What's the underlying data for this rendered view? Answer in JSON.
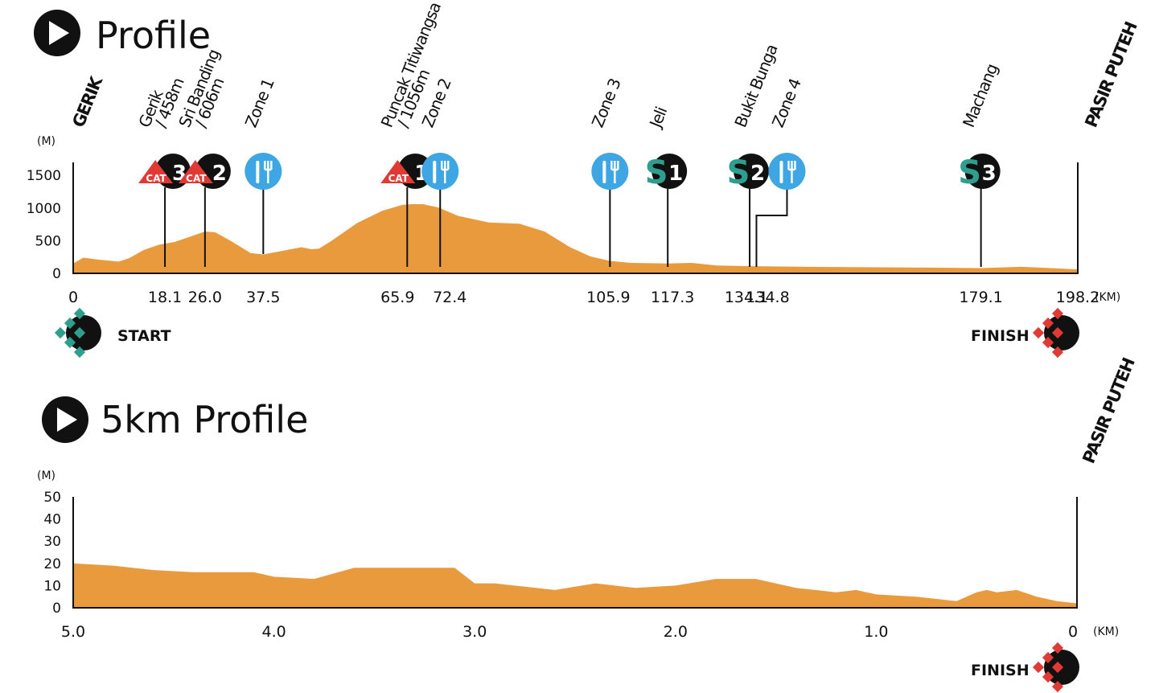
{
  "colors": {
    "fill": "#E99A3C",
    "climb": "#E03A34",
    "feed": "#3EA6E2",
    "sprint": "#2E9E8E",
    "dark": "#111111"
  },
  "profile": {
    "title": "Profile",
    "unit_y": "(M)",
    "unit_x": "(KM)",
    "start_label": "START",
    "finish_label": "FINISH",
    "start_place": "GERIK",
    "finish_place": "PASIR PUTEH",
    "x_ticks": [
      {
        "label": "0",
        "km": 0
      },
      {
        "label": "18.1",
        "km": 18.1
      },
      {
        "label": "26.0",
        "km": 26.0
      },
      {
        "label": "37.5",
        "km": 37.5
      },
      {
        "label": "65.9",
        "km": 65.9
      },
      {
        "label": "72.4",
        "km": 72.4
      },
      {
        "label": "105.9",
        "km": 105.9
      },
      {
        "label": "117.3",
        "km": 117.3
      },
      {
        "label": "134.1",
        "km": 134.1
      },
      {
        "label": "134.8",
        "km": 134.8
      },
      {
        "label": "179.1",
        "km": 179.1
      },
      {
        "label": "198.2",
        "km": 198.2
      }
    ],
    "locations": [
      {
        "km": 18.1,
        "lines": [
          "Gerik",
          "/ 458m"
        ]
      },
      {
        "km": 26.0,
        "lines": [
          "Sri Banding",
          "/ 606m"
        ]
      },
      {
        "km": 37.5,
        "lines": [
          "Zone 1"
        ]
      },
      {
        "km": 65.9,
        "lines": [
          "Puncak Titiwangsa",
          "/ 1056m"
        ]
      },
      {
        "km": 72.4,
        "lines": [
          "Zone 2"
        ]
      },
      {
        "km": 105.9,
        "lines": [
          "Zone 3"
        ]
      },
      {
        "km": 117.3,
        "lines": [
          "Jeli"
        ]
      },
      {
        "km": 134.1,
        "lines": [
          "Bukit Bunga"
        ]
      },
      {
        "km": 134.8,
        "lines": [
          "Zone 4"
        ]
      },
      {
        "km": 179.1,
        "lines": [
          "Machang"
        ]
      }
    ],
    "markers": [
      {
        "km": 18.1,
        "type": "climb",
        "tag": "CAT",
        "num": "3"
      },
      {
        "km": 26.0,
        "type": "climb",
        "tag": "CAT",
        "num": "2"
      },
      {
        "km": 37.5,
        "type": "feed"
      },
      {
        "km": 65.9,
        "type": "climb",
        "tag": "CAT",
        "num": "1"
      },
      {
        "km": 72.4,
        "type": "feed"
      },
      {
        "km": 105.9,
        "type": "feed"
      },
      {
        "km": 117.3,
        "type": "sprint",
        "tag": "S",
        "num": "1"
      },
      {
        "km": 134.1,
        "type": "sprint",
        "tag": "S",
        "num": "2"
      },
      {
        "km": 134.8,
        "type": "feed"
      },
      {
        "km": 179.1,
        "type": "sprint",
        "tag": "S",
        "num": "3"
      }
    ]
  },
  "profile5": {
    "title": "5km Profile",
    "unit_y": "(M)",
    "unit_x": "(KM)",
    "finish_label": "FINISH",
    "finish_place": "PASIR PUTEH",
    "x_ticks": [
      {
        "label": "5.0",
        "km": 5.0
      },
      {
        "label": "4.0",
        "km": 4.0
      },
      {
        "label": "3.0",
        "km": 3.0
      },
      {
        "label": "2.0",
        "km": 2.0
      },
      {
        "label": "1.0",
        "km": 1.0
      },
      {
        "label": "0",
        "km": 0
      }
    ]
  },
  "chart_data": [
    {
      "type": "area",
      "title": "Profile",
      "xlabel": "(KM)",
      "ylabel": "(M)",
      "xlim": [
        0,
        198.2
      ],
      "ylim": [
        0,
        1700
      ],
      "y_ticks": [
        0,
        500,
        1000,
        1500
      ],
      "x": [
        0,
        2,
        5,
        9,
        11,
        14,
        17,
        20,
        23,
        26,
        28,
        31,
        35,
        37.5,
        41,
        45,
        47,
        48.5,
        51,
        56,
        61,
        65,
        66.5,
        69,
        72,
        76,
        82,
        88,
        93,
        98,
        102,
        105.9,
        110,
        117.3,
        122,
        127,
        134,
        145,
        165,
        179.1,
        187,
        193,
        198.2
      ],
      "y": [
        150,
        240,
        210,
        180,
        230,
        360,
        440,
        480,
        560,
        640,
        630,
        500,
        310,
        290,
        340,
        400,
        370,
        380,
        500,
        770,
        960,
        1050,
        1060,
        1060,
        1010,
        880,
        780,
        760,
        640,
        400,
        260,
        190,
        160,
        150,
        160,
        120,
        110,
        100,
        90,
        80,
        100,
        80,
        60
      ]
    },
    {
      "type": "area",
      "title": "5km Profile",
      "xlabel": "(KM)",
      "ylabel": "(M)",
      "xlim": [
        5.0,
        0
      ],
      "ylim": [
        0,
        50
      ],
      "y_ticks": [
        0,
        10,
        20,
        30,
        40,
        50
      ],
      "x": [
        5.0,
        4.8,
        4.6,
        4.4,
        4.2,
        4.1,
        4.0,
        3.8,
        3.6,
        3.4,
        3.2,
        3.1,
        3.0,
        2.9,
        2.8,
        2.6,
        2.4,
        2.2,
        2.0,
        1.8,
        1.6,
        1.4,
        1.2,
        1.1,
        1.0,
        0.8,
        0.7,
        0.6,
        0.5,
        0.45,
        0.4,
        0.3,
        0.2,
        0.1,
        0
      ],
      "y": [
        20,
        19,
        17,
        16,
        16,
        16,
        14,
        13,
        18,
        18,
        18,
        18,
        11,
        11,
        10,
        8,
        11,
        9,
        10,
        13,
        13,
        9,
        7,
        8,
        6,
        5,
        4,
        3,
        7,
        8,
        7,
        8,
        5,
        3,
        2
      ]
    }
  ]
}
